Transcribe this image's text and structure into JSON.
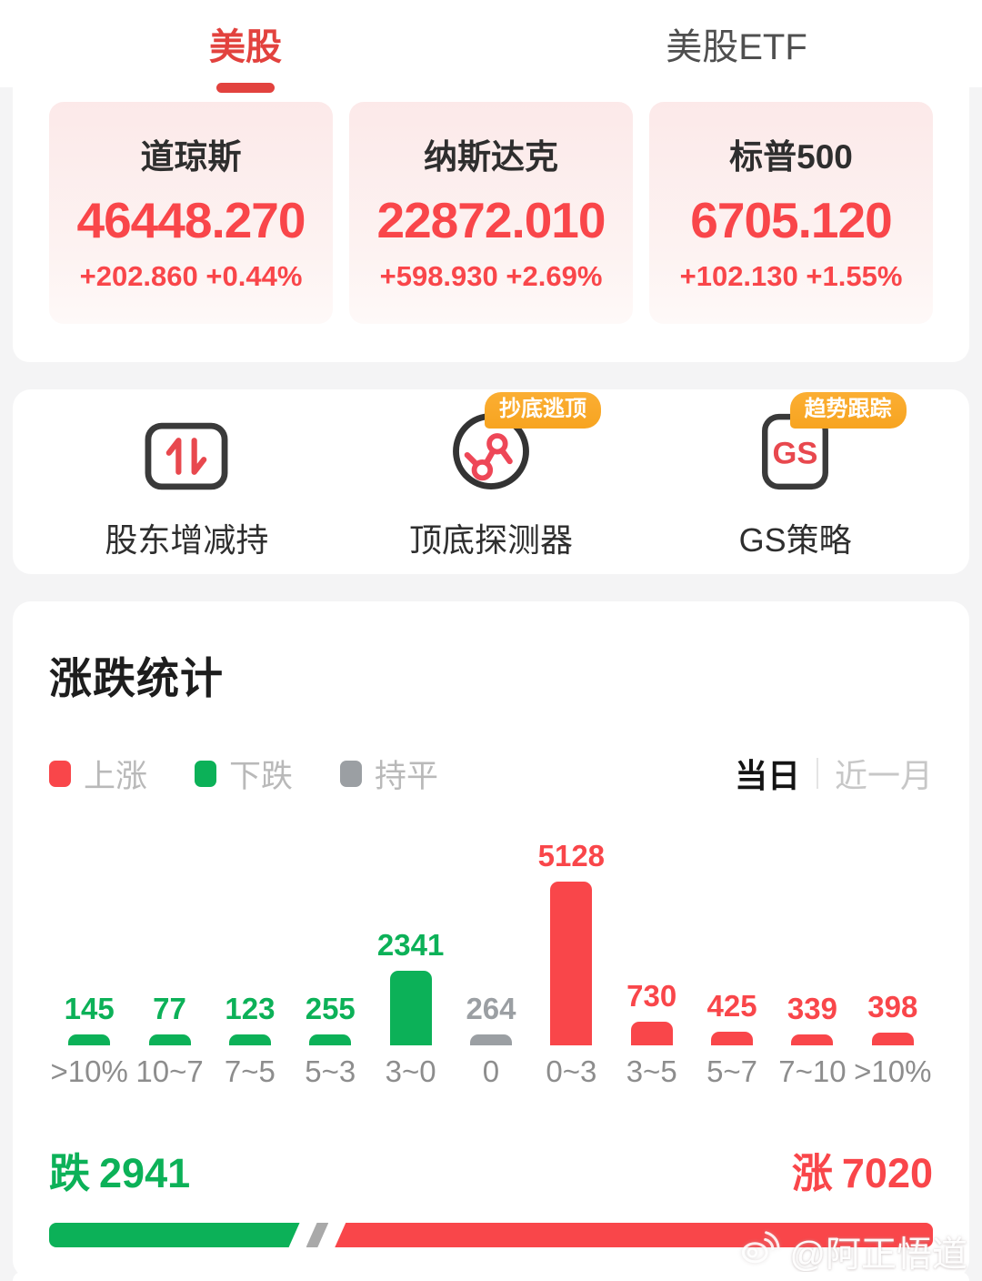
{
  "colors": {
    "up_red": "#f9464a",
    "down_green": "#0cb158",
    "flat_gray": "#9b9fa3",
    "tab_red": "#e2423e",
    "badge_orange": "#f7a420"
  },
  "header": {
    "tabs": [
      {
        "label": "美股",
        "active": true
      },
      {
        "label": "美股ETF",
        "active": false
      }
    ]
  },
  "indices": [
    {
      "name": "道琼斯",
      "value": "46448.270",
      "change": "+202.860",
      "change_pct": "+0.44%"
    },
    {
      "name": "纳斯达克",
      "value": "22872.010",
      "change": "+598.930",
      "change_pct": "+2.69%"
    },
    {
      "name": "标普500",
      "value": "6705.120",
      "change": "+102.130",
      "change_pct": "+1.55%"
    }
  ],
  "features": [
    {
      "label": "股东增减持",
      "icon": "holder-change-icon",
      "badge": ""
    },
    {
      "label": "顶底探测器",
      "icon": "top-bottom-detector-icon",
      "badge": "抄底逃顶"
    },
    {
      "label": "GS策略",
      "icon": "gs-strategy-icon",
      "badge": "趋势跟踪",
      "icon_text": "GS"
    }
  ],
  "stats": {
    "title": "涨跌统计",
    "legend": [
      {
        "label": "上涨",
        "color_key": "up_red"
      },
      {
        "label": "下跌",
        "color_key": "down_green"
      },
      {
        "label": "持平",
        "color_key": "flat_gray"
      }
    ],
    "period_tabs": [
      {
        "label": "当日",
        "active": true
      },
      {
        "label": "近一月",
        "active": false
      }
    ],
    "summary": {
      "down_label": "跌",
      "down_value": "2941",
      "up_label": "涨",
      "up_value": "7020",
      "flat_value": "264"
    }
  },
  "chart_data": {
    "type": "bar",
    "title": "涨跌统计（当日）",
    "categories": [
      ">10%",
      "10~7",
      "7~5",
      "5~3",
      "3~0",
      "0",
      "0~3",
      "3~5",
      "5~7",
      "7~10",
      ">10%"
    ],
    "values": [
      145,
      77,
      123,
      255,
      2341,
      264,
      5128,
      730,
      425,
      339,
      398
    ],
    "series_colors": [
      "down",
      "down",
      "down",
      "down",
      "down",
      "flat",
      "up",
      "up",
      "up",
      "up",
      "up"
    ],
    "ylim": [
      0,
      5128
    ],
    "grid": false,
    "value_labels": true,
    "legend_position": "top-left",
    "totals": {
      "down": 2941,
      "flat": 264,
      "up": 7020
    }
  },
  "watermark": {
    "text": "@阿正悟道",
    "icon": "weibo-icon"
  }
}
